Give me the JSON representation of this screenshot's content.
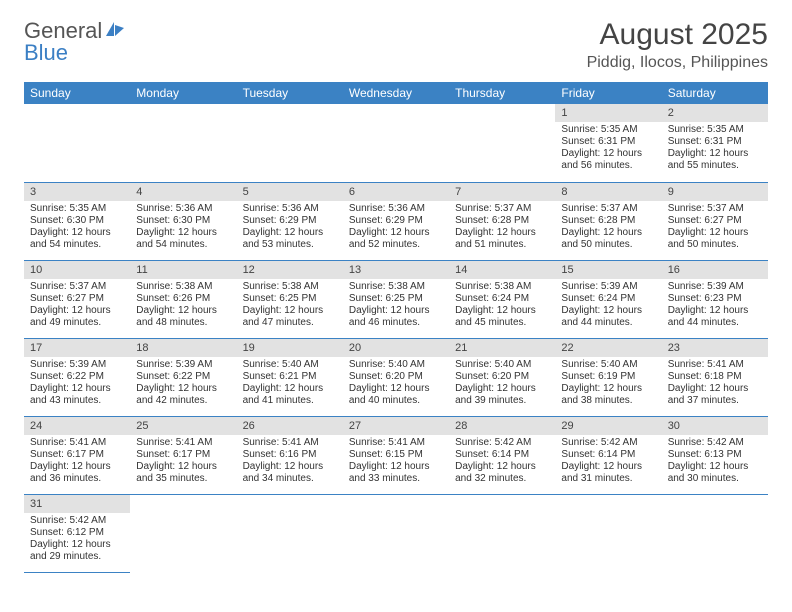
{
  "brand": {
    "part1": "General",
    "part2": "Blue"
  },
  "title": "August 2025",
  "location": "Piddig, Ilocos, Philippines",
  "colors": {
    "header_bg": "#3b82c4",
    "header_text": "#ffffff",
    "daynum_bg": "#e2e2e2",
    "border": "#3b82c4",
    "brand_blue": "#3b7fc4"
  },
  "weekdays": [
    "Sunday",
    "Monday",
    "Tuesday",
    "Wednesday",
    "Thursday",
    "Friday",
    "Saturday"
  ],
  "layout": {
    "leading_blanks": 5,
    "days_in_month": 31
  },
  "days": {
    "1": {
      "sunrise": "Sunrise: 5:35 AM",
      "sunset": "Sunset: 6:31 PM",
      "daylight": "Daylight: 12 hours and 56 minutes."
    },
    "2": {
      "sunrise": "Sunrise: 5:35 AM",
      "sunset": "Sunset: 6:31 PM",
      "daylight": "Daylight: 12 hours and 55 minutes."
    },
    "3": {
      "sunrise": "Sunrise: 5:35 AM",
      "sunset": "Sunset: 6:30 PM",
      "daylight": "Daylight: 12 hours and 54 minutes."
    },
    "4": {
      "sunrise": "Sunrise: 5:36 AM",
      "sunset": "Sunset: 6:30 PM",
      "daylight": "Daylight: 12 hours and 54 minutes."
    },
    "5": {
      "sunrise": "Sunrise: 5:36 AM",
      "sunset": "Sunset: 6:29 PM",
      "daylight": "Daylight: 12 hours and 53 minutes."
    },
    "6": {
      "sunrise": "Sunrise: 5:36 AM",
      "sunset": "Sunset: 6:29 PM",
      "daylight": "Daylight: 12 hours and 52 minutes."
    },
    "7": {
      "sunrise": "Sunrise: 5:37 AM",
      "sunset": "Sunset: 6:28 PM",
      "daylight": "Daylight: 12 hours and 51 minutes."
    },
    "8": {
      "sunrise": "Sunrise: 5:37 AM",
      "sunset": "Sunset: 6:28 PM",
      "daylight": "Daylight: 12 hours and 50 minutes."
    },
    "9": {
      "sunrise": "Sunrise: 5:37 AM",
      "sunset": "Sunset: 6:27 PM",
      "daylight": "Daylight: 12 hours and 50 minutes."
    },
    "10": {
      "sunrise": "Sunrise: 5:37 AM",
      "sunset": "Sunset: 6:27 PM",
      "daylight": "Daylight: 12 hours and 49 minutes."
    },
    "11": {
      "sunrise": "Sunrise: 5:38 AM",
      "sunset": "Sunset: 6:26 PM",
      "daylight": "Daylight: 12 hours and 48 minutes."
    },
    "12": {
      "sunrise": "Sunrise: 5:38 AM",
      "sunset": "Sunset: 6:25 PM",
      "daylight": "Daylight: 12 hours and 47 minutes."
    },
    "13": {
      "sunrise": "Sunrise: 5:38 AM",
      "sunset": "Sunset: 6:25 PM",
      "daylight": "Daylight: 12 hours and 46 minutes."
    },
    "14": {
      "sunrise": "Sunrise: 5:38 AM",
      "sunset": "Sunset: 6:24 PM",
      "daylight": "Daylight: 12 hours and 45 minutes."
    },
    "15": {
      "sunrise": "Sunrise: 5:39 AM",
      "sunset": "Sunset: 6:24 PM",
      "daylight": "Daylight: 12 hours and 44 minutes."
    },
    "16": {
      "sunrise": "Sunrise: 5:39 AM",
      "sunset": "Sunset: 6:23 PM",
      "daylight": "Daylight: 12 hours and 44 minutes."
    },
    "17": {
      "sunrise": "Sunrise: 5:39 AM",
      "sunset": "Sunset: 6:22 PM",
      "daylight": "Daylight: 12 hours and 43 minutes."
    },
    "18": {
      "sunrise": "Sunrise: 5:39 AM",
      "sunset": "Sunset: 6:22 PM",
      "daylight": "Daylight: 12 hours and 42 minutes."
    },
    "19": {
      "sunrise": "Sunrise: 5:40 AM",
      "sunset": "Sunset: 6:21 PM",
      "daylight": "Daylight: 12 hours and 41 minutes."
    },
    "20": {
      "sunrise": "Sunrise: 5:40 AM",
      "sunset": "Sunset: 6:20 PM",
      "daylight": "Daylight: 12 hours and 40 minutes."
    },
    "21": {
      "sunrise": "Sunrise: 5:40 AM",
      "sunset": "Sunset: 6:20 PM",
      "daylight": "Daylight: 12 hours and 39 minutes."
    },
    "22": {
      "sunrise": "Sunrise: 5:40 AM",
      "sunset": "Sunset: 6:19 PM",
      "daylight": "Daylight: 12 hours and 38 minutes."
    },
    "23": {
      "sunrise": "Sunrise: 5:41 AM",
      "sunset": "Sunset: 6:18 PM",
      "daylight": "Daylight: 12 hours and 37 minutes."
    },
    "24": {
      "sunrise": "Sunrise: 5:41 AM",
      "sunset": "Sunset: 6:17 PM",
      "daylight": "Daylight: 12 hours and 36 minutes."
    },
    "25": {
      "sunrise": "Sunrise: 5:41 AM",
      "sunset": "Sunset: 6:17 PM",
      "daylight": "Daylight: 12 hours and 35 minutes."
    },
    "26": {
      "sunrise": "Sunrise: 5:41 AM",
      "sunset": "Sunset: 6:16 PM",
      "daylight": "Daylight: 12 hours and 34 minutes."
    },
    "27": {
      "sunrise": "Sunrise: 5:41 AM",
      "sunset": "Sunset: 6:15 PM",
      "daylight": "Daylight: 12 hours and 33 minutes."
    },
    "28": {
      "sunrise": "Sunrise: 5:42 AM",
      "sunset": "Sunset: 6:14 PM",
      "daylight": "Daylight: 12 hours and 32 minutes."
    },
    "29": {
      "sunrise": "Sunrise: 5:42 AM",
      "sunset": "Sunset: 6:14 PM",
      "daylight": "Daylight: 12 hours and 31 minutes."
    },
    "30": {
      "sunrise": "Sunrise: 5:42 AM",
      "sunset": "Sunset: 6:13 PM",
      "daylight": "Daylight: 12 hours and 30 minutes."
    },
    "31": {
      "sunrise": "Sunrise: 5:42 AM",
      "sunset": "Sunset: 6:12 PM",
      "daylight": "Daylight: 12 hours and 29 minutes."
    }
  }
}
